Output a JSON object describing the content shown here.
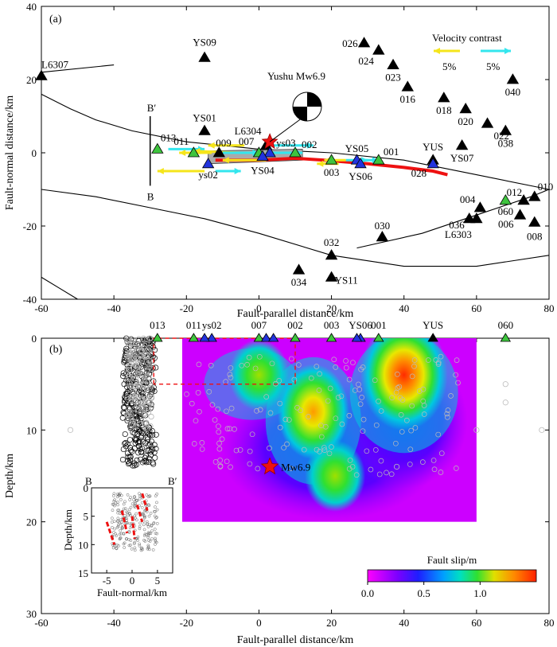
{
  "chart_data": [
    {
      "type": "scatter",
      "panel": "(a)",
      "xlabel": "Fault-parallel distance/km",
      "ylabel": "Fault-normal distance/km",
      "xlim": [
        -60,
        80
      ],
      "ylim": [
        -40,
        40
      ],
      "xticks": [
        -60,
        -40,
        -20,
        0,
        20,
        40,
        60,
        80
      ],
      "yticks": [
        -40,
        -20,
        0,
        20,
        40
      ],
      "legend": {
        "title": "Velocity contrast",
        "items": [
          "5%",
          "5%"
        ],
        "colors": [
          "#f5e51b",
          "#33e6ee"
        ]
      },
      "focal_label": "Yushu Mw6.9",
      "stations_black": [
        {
          "name": "L6307",
          "x": -60,
          "y": 21
        },
        {
          "name": "YS09",
          "x": -15,
          "y": 26
        },
        {
          "name": "026",
          "x": 29,
          "y": 30
        },
        {
          "name": "024",
          "x": 33,
          "y": 28
        },
        {
          "name": "023",
          "x": 37,
          "y": 24
        },
        {
          "name": "016",
          "x": 41,
          "y": 18
        },
        {
          "name": "040",
          "x": 70,
          "y": 20
        },
        {
          "name": "018",
          "x": 51,
          "y": 15
        },
        {
          "name": "020",
          "x": 57,
          "y": 12
        },
        {
          "name": "022",
          "x": 63,
          "y": 8
        },
        {
          "name": "038",
          "x": 68,
          "y": 6
        },
        {
          "name": "YS01",
          "x": -15,
          "y": 6
        },
        {
          "name": "L6304",
          "x": 2,
          "y": 2
        },
        {
          "name": "YUS",
          "x": 48,
          "y": -2
        },
        {
          "name": "YS07",
          "x": 56,
          "y": 2
        },
        {
          "name": "009",
          "x": -11,
          "y": 0
        },
        {
          "name": "004",
          "x": 61,
          "y": -15
        },
        {
          "name": "036",
          "x": 58,
          "y": -18
        },
        {
          "name": "L6303",
          "x": 60,
          "y": -18
        },
        {
          "name": "006",
          "x": 72,
          "y": -17
        },
        {
          "name": "008",
          "x": 76,
          "y": -19
        },
        {
          "name": "010",
          "x": 76,
          "y": -12
        },
        {
          "name": "012",
          "x": 73,
          "y": -13
        },
        {
          "name": "030",
          "x": 34,
          "y": -23
        },
        {
          "name": "032",
          "x": 20,
          "y": -28
        },
        {
          "name": "034",
          "x": 11,
          "y": -32
        },
        {
          "name": "YS11",
          "x": 20,
          "y": -34
        }
      ],
      "stations_green": [
        {
          "name": "013",
          "x": -28,
          "y": 1
        },
        {
          "name": "011",
          "x": -18,
          "y": 0
        },
        {
          "name": "007",
          "x": 0,
          "y": 0
        },
        {
          "name": "002",
          "x": 10,
          "y": 0
        },
        {
          "name": "003",
          "x": 20,
          "y": -2
        },
        {
          "name": "001",
          "x": 33,
          "y": -2
        },
        {
          "name": "060",
          "x": 68,
          "y": -13
        }
      ],
      "stations_blue": [
        {
          "name": "ys02",
          "x": -14,
          "y": -3
        },
        {
          "name": "ys03",
          "x": 3,
          "y": 0
        },
        {
          "name": "YS04",
          "x": 1,
          "y": -1
        },
        {
          "name": "YS05",
          "x": 27,
          "y": -2
        },
        {
          "name": "YS06",
          "x": 28,
          "y": -3
        },
        {
          "name": "028",
          "x": 48,
          "y": -3
        }
      ]
    },
    {
      "type": "heatmap",
      "panel": "(b)",
      "xlabel": "Fault-parallel distance/km",
      "ylabel": "Depth/km",
      "xlim": [
        -60,
        80
      ],
      "ylim": [
        30,
        0
      ],
      "xticks": [
        -60,
        -40,
        -20,
        0,
        20,
        40,
        60,
        80
      ],
      "yticks": [
        0,
        10,
        20,
        30
      ],
      "station_labels": [
        {
          "name": "013",
          "x": -28
        },
        {
          "name": "011",
          "x": -18
        },
        {
          "name": "ys02",
          "x": -13
        },
        {
          "name": "007",
          "x": 0
        },
        {
          "name": "002",
          "x": 10
        },
        {
          "name": "003",
          "x": 20
        },
        {
          "name": "YS06",
          "x": 28
        },
        {
          "name": "001",
          "x": 33
        },
        {
          "name": "YUS",
          "x": 48
        },
        {
          "name": "060",
          "x": 68
        }
      ],
      "slip_patches": [
        {
          "x": 40,
          "depth": 4,
          "slip": 1.45
        },
        {
          "x": 15,
          "depth": 8,
          "slip": 1.1
        },
        {
          "x": 0,
          "depth": 4,
          "slip": 0.85
        },
        {
          "x": 21,
          "depth": 15,
          "slip": 0.6
        }
      ],
      "hypocenter": {
        "label": "Mw6.9",
        "x": 3,
        "depth": 14
      },
      "colorbar": {
        "title": "Fault slip/m",
        "ticks": [
          "0.0",
          "0.5",
          "1.0"
        ],
        "range": [
          0,
          1.5
        ]
      },
      "inset": {
        "left_label": "B",
        "right_label": "B′",
        "xlabel": "Fault-normal/km",
        "ylabel": "Depth/km",
        "xticks": [
          -5,
          0,
          5
        ],
        "yticks": [
          0,
          5,
          10,
          15
        ]
      }
    }
  ],
  "section_labels": {
    "top": "B′",
    "bottom": "B"
  }
}
